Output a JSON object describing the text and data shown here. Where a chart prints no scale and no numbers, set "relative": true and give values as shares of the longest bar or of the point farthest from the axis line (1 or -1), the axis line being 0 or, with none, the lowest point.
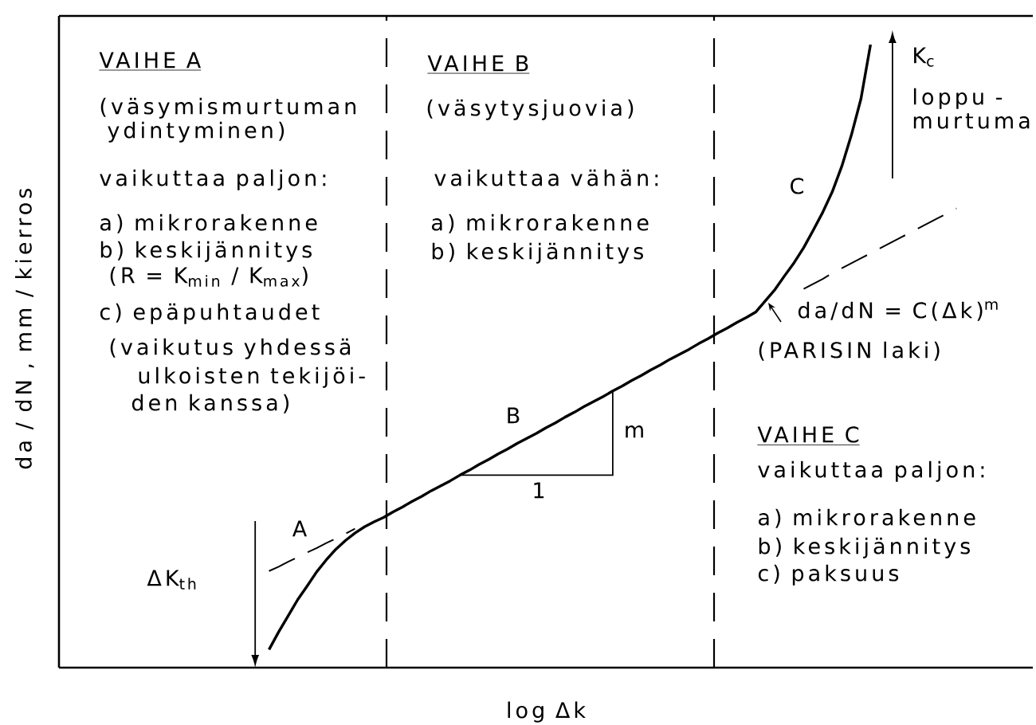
{
  "chart_data": {
    "type": "line",
    "relative": true,
    "xlabel": "log Δk",
    "ylabel": "da / dN , mm / kierros",
    "categories": [
      null,
      null,
      null,
      null,
      null,
      null,
      null,
      null,
      null,
      null,
      null,
      null,
      null,
      null,
      null,
      null,
      null,
      null,
      null,
      null,
      null,
      null,
      null,
      null,
      null,
      null,
      null,
      null,
      null,
      null,
      null,
      null,
      null,
      null,
      null,
      null,
      null,
      null,
      null,
      null,
      null,
      null,
      null,
      null,
      null,
      null,
      null,
      null,
      null,
      null,
      null,
      null,
      null,
      null,
      null,
      null,
      null,
      null,
      null,
      null,
      null,
      null,
      null,
      null,
      null,
      null,
      null,
      null,
      null,
      null,
      null,
      null,
      null,
      null,
      null,
      null,
      null,
      null,
      null,
      null,
      null,
      null,
      null,
      null,
      null,
      null,
      null,
      null,
      null,
      null,
      null,
      null,
      null,
      null,
      null,
      null,
      null,
      null,
      null,
      null,
      null
    ],
    "series": [
      {
        "color": "#000000",
        "values": [
          null,
          null,
          null,
          null,
          null,
          null,
          null,
          null,
          null,
          null,
          null,
          null,
          null,
          null,
          null,
          null,
          null,
          null,
          null,
          null,
          null,
          0.029,
          0.057,
          0.083,
          0.109,
          0.131,
          0.154,
          0.173,
          0.19,
          0.204,
          0.216,
          0.226,
          0.234,
          0.241,
          0.25,
          0.258,
          0.267,
          0.275,
          0.284,
          0.292,
          0.3,
          0.309,
          0.317,
          0.326,
          0.334,
          0.343,
          0.351,
          0.36,
          0.368,
          0.376,
          0.385,
          0.393,
          0.402,
          0.41,
          0.419,
          0.427,
          0.435,
          0.444,
          0.452,
          0.461,
          0.469,
          0.478,
          0.486,
          0.495,
          0.503,
          0.511,
          0.52,
          0.528,
          0.537,
          0.545,
          0.554,
          0.562,
          0.571,
          0.589,
          0.607,
          0.629,
          0.65,
          0.674,
          0.702,
          0.731,
          0.764,
          0.805,
          0.855,
          0.913,
          1.0,
          null,
          null,
          null,
          null,
          null,
          null,
          null,
          null,
          null,
          null,
          null,
          null,
          null,
          null,
          null,
          null
        ]
      },
      {
        "color": "#000000",
        "line_style": "dashed",
        "values": [
          null,
          null,
          null,
          null,
          null,
          null,
          null,
          null,
          null,
          null,
          null,
          null,
          null,
          null,
          null,
          null,
          null,
          null,
          null,
          null,
          null,
          0.155,
          0.162,
          0.17,
          0.177,
          0.185,
          0.192,
          0.2,
          0.207,
          0.215,
          0.223,
          null,
          null,
          null,
          null,
          null,
          null,
          null,
          null,
          null,
          null,
          null,
          null,
          null,
          null,
          null,
          null,
          null,
          null,
          null,
          null,
          null,
          null,
          null,
          null,
          null,
          null,
          null,
          null,
          null,
          null,
          null,
          null,
          null,
          null,
          null,
          null,
          null,
          null,
          null,
          null,
          null,
          null,
          null,
          null,
          null,
          null,
          0.608,
          0.616,
          0.624,
          0.633,
          0.641,
          0.649,
          0.657,
          0.665,
          0.673,
          0.681,
          0.689,
          0.697,
          0.705,
          0.713,
          0.721,
          0.729,
          0.737,
          null,
          null,
          null,
          null,
          null,
          null,
          null
        ]
      }
    ],
    "annotations": [
      "VAIHE A",
      "(väsymismurtuman",
      "ydintyminen)",
      "vaikuttaa paljon:",
      "a) mikrorakenne",
      "b) keskijännitys",
      "(R = K$_{min}$ / K$_{max}$)",
      "c) epäpuhtaudet",
      "(vaikutus yhdessä",
      "ulkoisten tekijöi-",
      "den kanssa)",
      "VAIHE B",
      "(väsytysjuovia)",
      "vaikuttaa vähän:",
      "a) mikrorakenne",
      "b) keskijännitys",
      "K$_{c}$",
      "loppu -",
      "murtuma",
      "C",
      "da/dN = C(Δk)$^{m}$",
      "(PARISIN laki)",
      "VAIHE C",
      "vaikuttaa paljon:",
      "a) mikrorakenne",
      "b) keskijännitys",
      "c) paksuus",
      "B",
      "m",
      "1",
      "A",
      "ΔK$_{th}$"
    ],
    "marker": "none",
    "line_style": "solid"
  }
}
